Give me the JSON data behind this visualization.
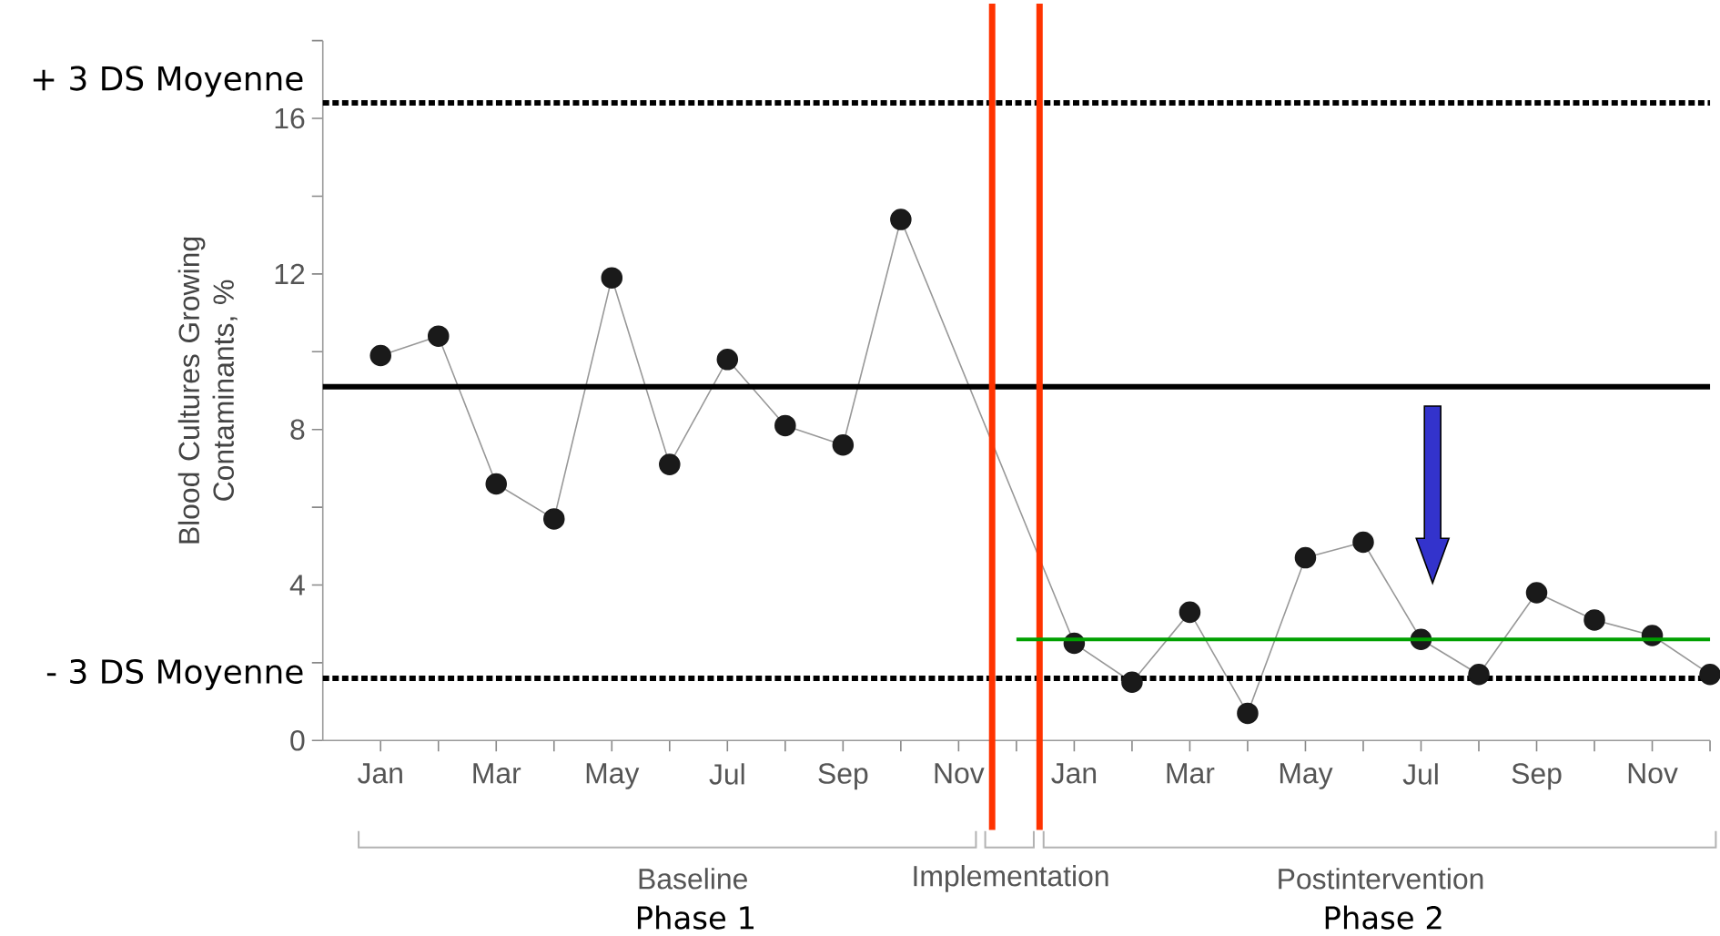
{
  "chart_data": {
    "type": "line",
    "categories": [
      "Jan",
      null,
      "Mar",
      null,
      "May",
      null,
      "Jul",
      null,
      "Sep",
      null,
      "Nov",
      null,
      "Jan",
      null,
      "Mar",
      null,
      "May",
      null,
      "Jul",
      null,
      "Sep",
      null,
      "Nov",
      null
    ],
    "ylabel": "Blood Cultures Growing Contaminants, %",
    "ylim": [
      0,
      18
    ],
    "yticks": [
      0,
      {
        "value": 2,
        "label": null
      },
      4,
      {
        "value": 6,
        "label": null
      },
      8,
      {
        "value": 10,
        "label": null
      },
      12,
      {
        "value": 14,
        "label": null
      },
      16,
      {
        "value": 18,
        "label": null
      }
    ],
    "marker": "circle",
    "series": [
      {
        "color": "#1a1a1a",
        "values": [
          9.9,
          10.4,
          6.6,
          5.7,
          11.9,
          7.1,
          9.8,
          8.1,
          7.6,
          13.4,
          null,
          null,
          2.5,
          1.5,
          3.3,
          0.7,
          4.7,
          5.1,
          2.6,
          1.7,
          3.8,
          3.1,
          2.7,
          1.7
        ]
      },
      {
        "type": "line",
        "marker": "none",
        "color": "#00a000",
        "values": [
          null,
          null,
          null,
          null,
          null,
          null,
          null,
          null,
          null,
          null,
          null,
          2.6,
          2.6,
          2.6,
          2.6,
          2.6,
          2.6,
          2.6,
          2.6,
          2.6,
          2.6,
          2.6,
          2.6,
          2.6
        ]
      }
    ],
    "ref_lines": [
      {
        "axis": "y",
        "value": 16.4,
        "label": "+ 3 DS Moyenne",
        "line_style": "dotted",
        "color": "#000000"
      },
      {
        "axis": "y",
        "value": 9.1,
        "color": "#000000"
      },
      {
        "axis": "y",
        "value": 1.6,
        "label": "- 3 DS Moyenne",
        "line_style": "dotted",
        "color": "#000000"
      }
    ],
    "annotations": [
      "Baseline",
      "Phase 1",
      "Implementation",
      "Postintervention",
      "Phase 2"
    ]
  }
}
